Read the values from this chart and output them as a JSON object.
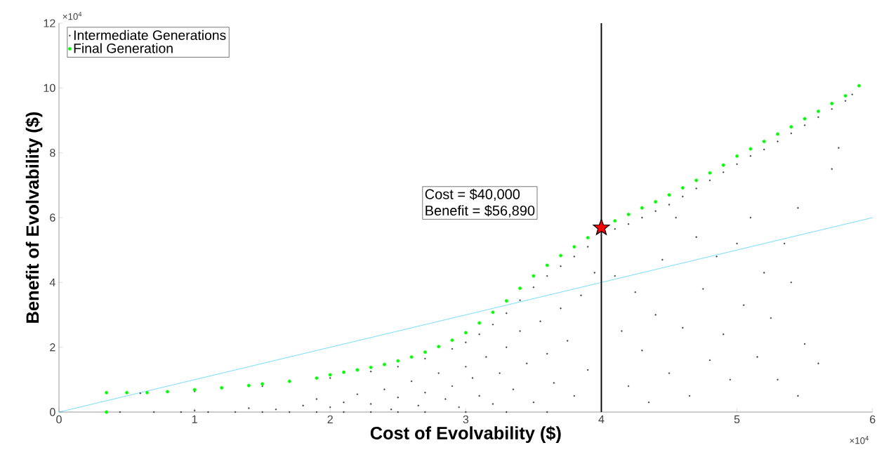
{
  "chart_data": {
    "type": "scatter",
    "xlabel": "Cost of Evolvability ($)",
    "ylabel": "Benefit of Evolvability ($)",
    "xlim": [
      0,
      6
    ],
    "ylim": [
      0,
      12
    ],
    "xticks": [
      0,
      1,
      2,
      3,
      4,
      5,
      6
    ],
    "yticks": [
      0,
      2,
      4,
      6,
      8,
      10,
      12
    ],
    "legend": "top left",
    "marker": "circle",
    "annotations": [
      "×10$^{4}$",
      "×10$^{4}$",
      "Cost = $40,000",
      "Benefit = $56,890"
    ],
    "ref_lines": [
      {
        "axis": "x",
        "value": 4,
        "color": "#000000"
      }
    ],
    "series": [
      {
        "name": "Intermediate Generations",
        "color": "#404040",
        "x": [
          0.6,
          1.0,
          1.5,
          2.0,
          2.3,
          2.5,
          2.7,
          2.9,
          3.0,
          3.1,
          3.2,
          3.3,
          3.4,
          3.5,
          3.6,
          3.7,
          3.8,
          3.9,
          4.0,
          4.1,
          4.2,
          4.3,
          4.4,
          4.5,
          4.6,
          4.7,
          4.8,
          4.9,
          5.0,
          5.1,
          5.2,
          5.3,
          5.4,
          5.5,
          5.6,
          5.7,
          5.8,
          5.85,
          0.45,
          0.7,
          0.9,
          1.1,
          1.3,
          1.5,
          1.7,
          1.9,
          2.1,
          2.3,
          2.5,
          2.7,
          3.0,
          3.3,
          3.6,
          1.0,
          1.4,
          1.6,
          1.8,
          1.9,
          2.0,
          2.1,
          2.2,
          2.3,
          2.4,
          2.45,
          2.5,
          2.6,
          2.65,
          2.7,
          2.8,
          2.85,
          2.9,
          2.95,
          3.0,
          3.05,
          3.1,
          3.15,
          3.2,
          3.25,
          3.3,
          3.35,
          3.4,
          3.45,
          3.5,
          3.55,
          3.6,
          3.65,
          3.7,
          3.75,
          3.8,
          3.85,
          3.9,
          3.95,
          4.1,
          4.15,
          4.2,
          4.25,
          4.3,
          4.35,
          4.4,
          4.45,
          4.5,
          4.55,
          4.6,
          4.65,
          4.7,
          4.75,
          4.8,
          4.85,
          4.9,
          4.95,
          5.0,
          5.05,
          5.1,
          5.15,
          5.2,
          5.25,
          5.3,
          5.35,
          5.4,
          5.45,
          5.45,
          5.5,
          5.6,
          5.7,
          5.75
        ],
        "values": [
          0.58,
          0.64,
          0.8,
          1.05,
          1.25,
          1.4,
          1.65,
          1.95,
          2.15,
          2.4,
          2.7,
          3.05,
          3.45,
          3.85,
          4.2,
          4.5,
          4.8,
          5.1,
          5.45,
          5.65,
          5.8,
          6.0,
          6.2,
          6.4,
          6.65,
          6.9,
          7.15,
          7.4,
          7.65,
          7.9,
          8.1,
          8.35,
          8.6,
          8.85,
          9.1,
          9.35,
          9.6,
          9.8,
          0,
          0,
          0,
          0,
          0,
          0,
          0,
          0,
          0,
          0,
          0,
          0,
          0,
          0,
          0,
          0.05,
          0.12,
          0.08,
          0.2,
          0.4,
          0.15,
          0.3,
          0.55,
          0.25,
          0.7,
          0.08,
          0.45,
          0.95,
          0.2,
          0.6,
          1.2,
          0.4,
          0.8,
          0.15,
          1.4,
          1.05,
          0.5,
          1.7,
          0.25,
          1.2,
          2.0,
          0.7,
          2.5,
          1.5,
          0.3,
          2.8,
          1.8,
          0.9,
          3.2,
          2.2,
          0.5,
          3.6,
          1.3,
          4.3,
          4.2,
          2.5,
          0.8,
          3.7,
          1.9,
          0.3,
          3.0,
          4.7,
          1.2,
          6.0,
          2.6,
          0.5,
          5.4,
          3.8,
          1.6,
          4.8,
          2.4,
          1.0,
          5.2,
          3.3,
          6.0,
          1.7,
          4.3,
          2.9,
          1.0,
          5.2,
          4.0,
          6.3,
          0.5,
          2.1,
          1.5,
          7.5,
          8.15
        ]
      },
      {
        "name": "Final Generation",
        "color": "#00ff00",
        "x": [
          0.35,
          0.35,
          0.5,
          0.65,
          0.8,
          1.0,
          1.2,
          1.4,
          1.5,
          1.7,
          1.9,
          2.0,
          2.1,
          2.2,
          2.3,
          2.4,
          2.5,
          2.6,
          2.7,
          2.8,
          2.9,
          3.0,
          3.1,
          3.2,
          3.3,
          3.4,
          3.5,
          3.6,
          3.7,
          3.8,
          3.9,
          4.1,
          4.2,
          4.3,
          4.4,
          4.5,
          4.6,
          4.7,
          4.8,
          4.9,
          5.0,
          5.1,
          5.2,
          5.3,
          5.4,
          5.5,
          5.6,
          5.7,
          5.8,
          5.9
        ],
        "values": [
          0,
          0.6,
          0.6,
          0.6,
          0.63,
          0.69,
          0.75,
          0.82,
          0.87,
          0.95,
          1.05,
          1.15,
          1.23,
          1.3,
          1.38,
          1.47,
          1.58,
          1.7,
          1.85,
          2.02,
          2.22,
          2.45,
          2.75,
          3.08,
          3.43,
          3.82,
          4.2,
          4.53,
          4.83,
          5.1,
          5.38,
          5.9,
          6.1,
          6.3,
          6.49,
          6.7,
          6.92,
          7.15,
          7.38,
          7.62,
          7.9,
          8.12,
          8.35,
          8.58,
          8.8,
          9.05,
          9.28,
          9.52,
          9.76,
          10.07
        ]
      },
      {
        "type": "line",
        "color": "#00bfff",
        "marker": "none",
        "x": [
          0,
          6
        ],
        "values": [
          0,
          6
        ]
      },
      {
        "color": "#ff0000",
        "marker": "star",
        "x": [
          4
        ],
        "values": [
          5.689
        ]
      }
    ]
  }
}
